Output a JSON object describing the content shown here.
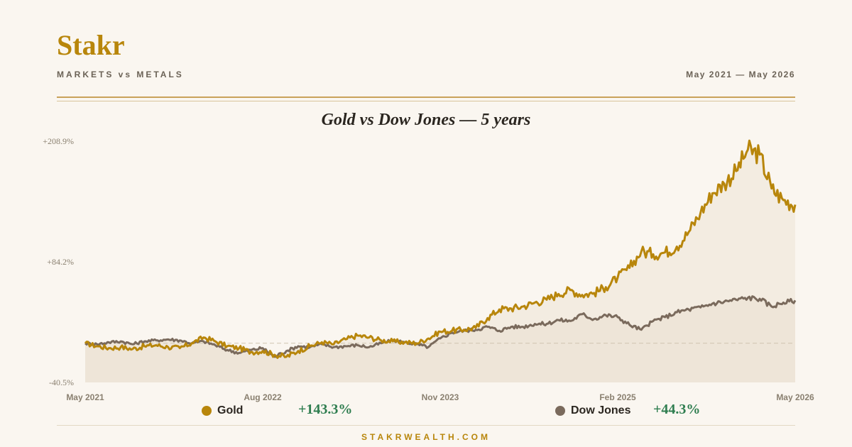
{
  "brand": "Stakr",
  "subtitle": "MARKETS vs METALS",
  "date_range": "May 2021 — May 2026",
  "footer": "STAKRWEALTH.COM",
  "colors": {
    "gold": "#b8860b",
    "dow": "#7a6a5c",
    "positive": "#2e7d4f",
    "fill": "#ede4d6"
  },
  "chart_data": {
    "type": "line",
    "title": "Gold vs Dow Jones — 5 years",
    "y_unit": "%",
    "ylim": [
      -40.5,
      208.9
    ],
    "y_ticks": [
      "+208.9%",
      "+84.2%",
      "-40.5%"
    ],
    "x_range": [
      "2021-05",
      "2026-05"
    ],
    "x_ticks": [
      "May 2021",
      "Aug 2022",
      "Nov 2023",
      "Feb 2025",
      "May 2026"
    ],
    "baseline": 0,
    "grid": false,
    "legend_position": "bottom",
    "series": [
      {
        "name": "Gold",
        "color": "#b8860b",
        "change": "+143.3%",
        "points": [
          [
            "2021-05",
            0
          ],
          [
            "2021-06",
            -3
          ],
          [
            "2021-07",
            -5
          ],
          [
            "2021-08",
            -4
          ],
          [
            "2021-09",
            -6
          ],
          [
            "2021-10",
            -3
          ],
          [
            "2021-11",
            -2
          ],
          [
            "2021-12",
            -4
          ],
          [
            "2022-01",
            -5
          ],
          [
            "2022-02",
            0
          ],
          [
            "2022-03",
            6
          ],
          [
            "2022-04",
            2
          ],
          [
            "2022-05",
            -3
          ],
          [
            "2022-06",
            -5
          ],
          [
            "2022-07",
            -9
          ],
          [
            "2022-08",
            -8
          ],
          [
            "2022-09",
            -12
          ],
          [
            "2022-10",
            -14
          ],
          [
            "2022-11",
            -8
          ],
          [
            "2022-12",
            -3
          ],
          [
            "2023-01",
            1
          ],
          [
            "2023-02",
            -1
          ],
          [
            "2023-03",
            4
          ],
          [
            "2023-04",
            8
          ],
          [
            "2023-05",
            6
          ],
          [
            "2023-06",
            3
          ],
          [
            "2023-07",
            2
          ],
          [
            "2023-08",
            1
          ],
          [
            "2023-09",
            0
          ],
          [
            "2023-10",
            5
          ],
          [
            "2023-11",
            12
          ],
          [
            "2023-12",
            13
          ],
          [
            "2024-01",
            14
          ],
          [
            "2024-02",
            16
          ],
          [
            "2024-03",
            26
          ],
          [
            "2024-04",
            35
          ],
          [
            "2024-05",
            36
          ],
          [
            "2024-06",
            38
          ],
          [
            "2024-07",
            42
          ],
          [
            "2024-08",
            45
          ],
          [
            "2024-09",
            51
          ],
          [
            "2024-10",
            55
          ],
          [
            "2024-11",
            50
          ],
          [
            "2024-12",
            52
          ],
          [
            "2025-01",
            58
          ],
          [
            "2025-02",
            68
          ],
          [
            "2025-03",
            78
          ],
          [
            "2025-04",
            95
          ],
          [
            "2025-05",
            92
          ],
          [
            "2025-06",
            94
          ],
          [
            "2025-07",
            100
          ],
          [
            "2025-08",
            115
          ],
          [
            "2025-09",
            135
          ],
          [
            "2025-10",
            155
          ],
          [
            "2025-11",
            165
          ],
          [
            "2025-12",
            178
          ],
          [
            "2026-01",
            200
          ],
          [
            "2026-02",
            195
          ],
          [
            "2026-03",
            160
          ],
          [
            "2026-04",
            148
          ],
          [
            "2026-05",
            143.3
          ]
        ]
      },
      {
        "name": "Dow Jones",
        "color": "#7a6a5c",
        "change": "+44.3%",
        "points": [
          [
            "2021-05",
            0
          ],
          [
            "2021-06",
            -1
          ],
          [
            "2021-07",
            1
          ],
          [
            "2021-08",
            2
          ],
          [
            "2021-09",
            -1
          ],
          [
            "2021-10",
            2
          ],
          [
            "2021-11",
            3
          ],
          [
            "2021-12",
            4
          ],
          [
            "2022-01",
            3
          ],
          [
            "2022-02",
            0
          ],
          [
            "2022-03",
            2
          ],
          [
            "2022-04",
            -2
          ],
          [
            "2022-05",
            -7
          ],
          [
            "2022-06",
            -10
          ],
          [
            "2022-07",
            -7
          ],
          [
            "2022-08",
            -5
          ],
          [
            "2022-09",
            -14
          ],
          [
            "2022-10",
            -8
          ],
          [
            "2022-11",
            -3
          ],
          [
            "2022-12",
            -4
          ],
          [
            "2023-01",
            -1
          ],
          [
            "2023-02",
            -4
          ],
          [
            "2023-03",
            -3
          ],
          [
            "2023-04",
            -2
          ],
          [
            "2023-05",
            -4
          ],
          [
            "2023-06",
            0
          ],
          [
            "2023-07",
            3
          ],
          [
            "2023-08",
            1
          ],
          [
            "2023-09",
            -1
          ],
          [
            "2023-10",
            -4
          ],
          [
            "2023-11",
            5
          ],
          [
            "2023-12",
            11
          ],
          [
            "2024-01",
            13
          ],
          [
            "2024-02",
            14
          ],
          [
            "2024-03",
            17
          ],
          [
            "2024-04",
            13
          ],
          [
            "2024-05",
            17
          ],
          [
            "2024-06",
            17
          ],
          [
            "2024-07",
            20
          ],
          [
            "2024-08",
            20
          ],
          [
            "2024-09",
            24
          ],
          [
            "2024-10",
            23
          ],
          [
            "2024-11",
            30
          ],
          [
            "2024-12",
            25
          ],
          [
            "2025-01",
            29
          ],
          [
            "2025-02",
            27
          ],
          [
            "2025-03",
            19
          ],
          [
            "2025-04",
            14
          ],
          [
            "2025-05",
            23
          ],
          [
            "2025-06",
            27
          ],
          [
            "2025-07",
            32
          ],
          [
            "2025-08",
            35
          ],
          [
            "2025-09",
            37
          ],
          [
            "2025-10",
            41
          ],
          [
            "2025-11",
            43
          ],
          [
            "2025-12",
            45
          ],
          [
            "2026-01",
            47
          ],
          [
            "2026-02",
            46
          ],
          [
            "2026-03",
            38
          ],
          [
            "2026-04",
            42
          ],
          [
            "2026-05",
            44.3
          ]
        ]
      }
    ]
  }
}
